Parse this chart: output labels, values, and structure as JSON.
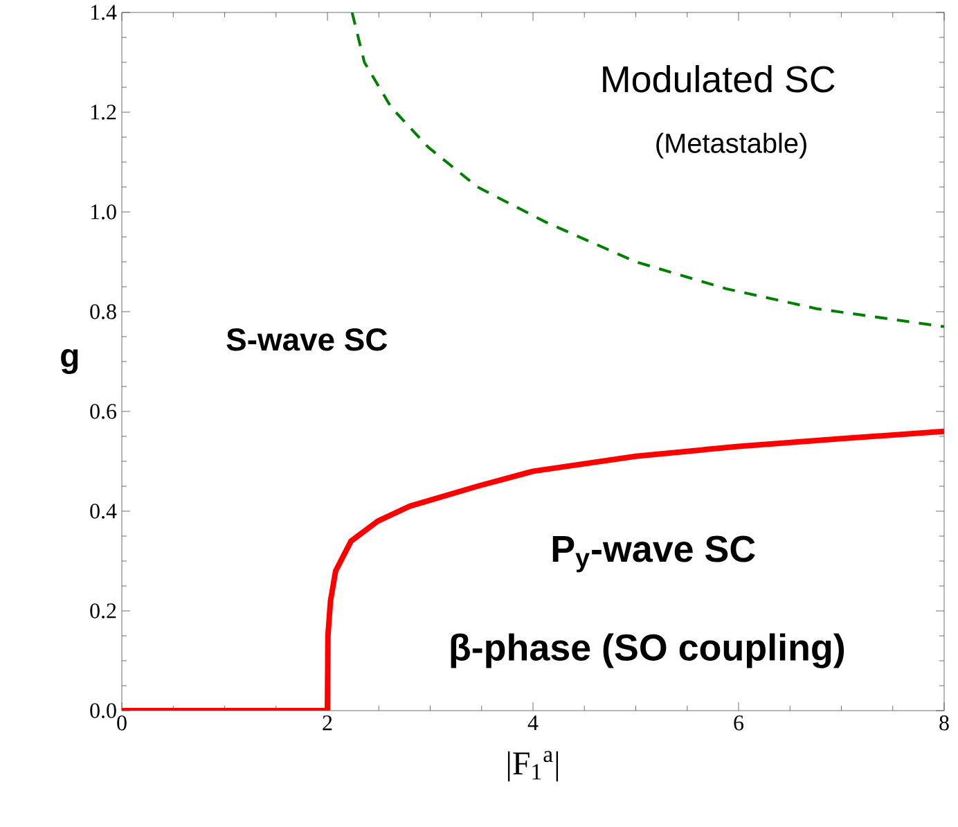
{
  "chart_data": {
    "type": "line",
    "xlabel": "|F$_{1}$$^{a}$|",
    "ylabel": "g",
    "xlim": [
      0,
      8
    ],
    "ylim": [
      0,
      1.4
    ],
    "xticks": [
      0,
      2,
      4,
      6,
      8
    ],
    "yticks": [
      {
        "value": 0,
        "label": "0.0"
      },
      {
        "value": 0.2,
        "label": "0.2"
      },
      {
        "value": 0.4,
        "label": "0.4"
      },
      {
        "value": 0.6,
        "label": "0.6"
      },
      {
        "value": 0.8,
        "label": "0.8"
      },
      {
        "value": 1.0,
        "label": "1.0"
      },
      {
        "value": 1.2,
        "label": "1.2"
      },
      {
        "value": 1.4,
        "label": "1.4"
      }
    ],
    "marker": "none",
    "series": [
      {
        "color": "#ff0000",
        "line_style": "solid",
        "x": [
          0,
          2,
          2.005,
          2.03,
          2.08,
          2.23,
          2.49,
          2.8,
          3.46,
          4,
          5,
          6,
          6.98,
          8
        ],
        "values": [
          0,
          0,
          0.15,
          0.22,
          0.28,
          0.34,
          0.38,
          0.41,
          0.45,
          0.48,
          0.51,
          0.53,
          0.545,
          0.56
        ]
      },
      {
        "color": "#008000",
        "line_style": "dashed",
        "x": [
          2.24,
          2.36,
          2.62,
          2.98,
          3.46,
          4.12,
          5.0,
          5.88,
          6.76,
          8
        ],
        "values": [
          1.4,
          1.3,
          1.21,
          1.13,
          1.05,
          0.98,
          0.9,
          0.846,
          0.806,
          0.77
        ]
      }
    ],
    "annotations": [
      "Modulated SC",
      "(Metastable)",
      "S-wave SC",
      "P$_{y}$-wave  SC",
      "β-phase (SO coupling)"
    ]
  }
}
